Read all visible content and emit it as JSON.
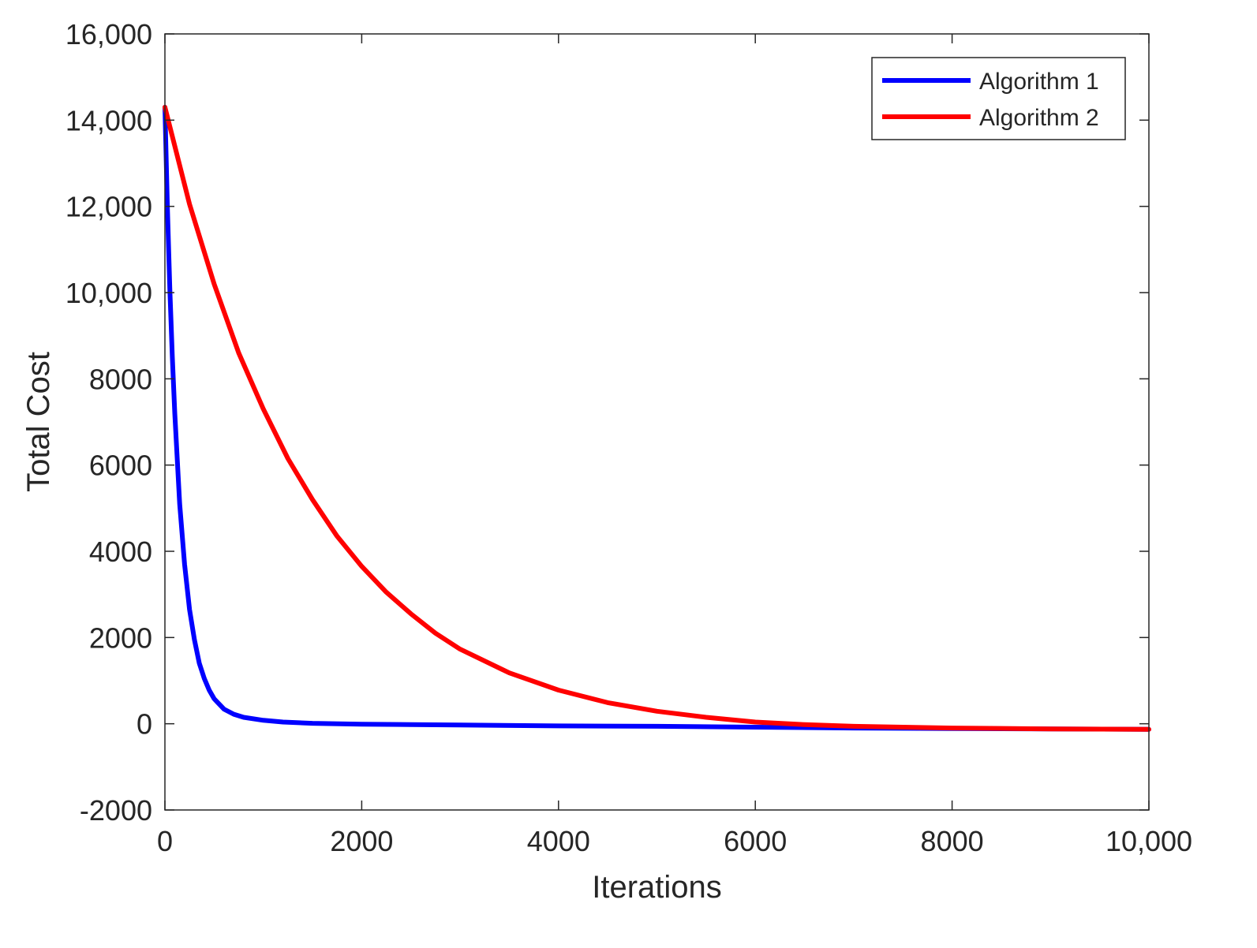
{
  "chart_data": {
    "type": "line",
    "title": "",
    "xlabel": "Iterations",
    "ylabel": "Total Cost",
    "xlim": [
      0,
      10000
    ],
    "ylim": [
      -2000,
      16000
    ],
    "xticks": [
      0,
      2000,
      4000,
      6000,
      8000,
      10000
    ],
    "xtick_labels": [
      "0",
      "2000",
      "4000",
      "6000",
      "8000",
      "10,000"
    ],
    "yticks": [
      -2000,
      0,
      2000,
      4000,
      6000,
      8000,
      10000,
      12000,
      14000,
      16000
    ],
    "ytick_labels": [
      "-2000",
      "0",
      "2000",
      "4000",
      "6000",
      "8000",
      "10,000",
      "12,000",
      "14,000",
      "16,000"
    ],
    "grid": false,
    "legend_position": "top-right",
    "series": [
      {
        "name": "Algorithm 1",
        "color": "#0000ff",
        "x": [
          0,
          25,
          50,
          75,
          100,
          150,
          200,
          250,
          300,
          350,
          400,
          450,
          500,
          600,
          700,
          800,
          1000,
          1200,
          1500,
          2000,
          2500,
          3000,
          4000,
          5000,
          6000,
          7000,
          8000,
          9000,
          10000
        ],
        "y": [
          14300,
          12000,
          10100,
          8500,
          7200,
          5100,
          3700,
          2650,
          1950,
          1400,
          1050,
          780,
          580,
          340,
          220,
          150,
          80,
          40,
          10,
          -10,
          -20,
          -30,
          -50,
          -60,
          -80,
          -100,
          -110,
          -120,
          -130
        ]
      },
      {
        "name": "Algorithm 2",
        "color": "#ff0000",
        "x": [
          0,
          250,
          500,
          750,
          1000,
          1250,
          1500,
          1750,
          2000,
          2250,
          2500,
          2750,
          3000,
          3500,
          4000,
          4500,
          5000,
          5500,
          6000,
          6500,
          7000,
          7500,
          8000,
          9000,
          10000
        ],
        "y": [
          14300,
          12050,
          10200,
          8600,
          7300,
          6150,
          5200,
          4350,
          3650,
          3050,
          2550,
          2100,
          1730,
          1180,
          780,
          490,
          290,
          150,
          40,
          -20,
          -60,
          -80,
          -100,
          -120,
          -130
        ]
      }
    ]
  }
}
